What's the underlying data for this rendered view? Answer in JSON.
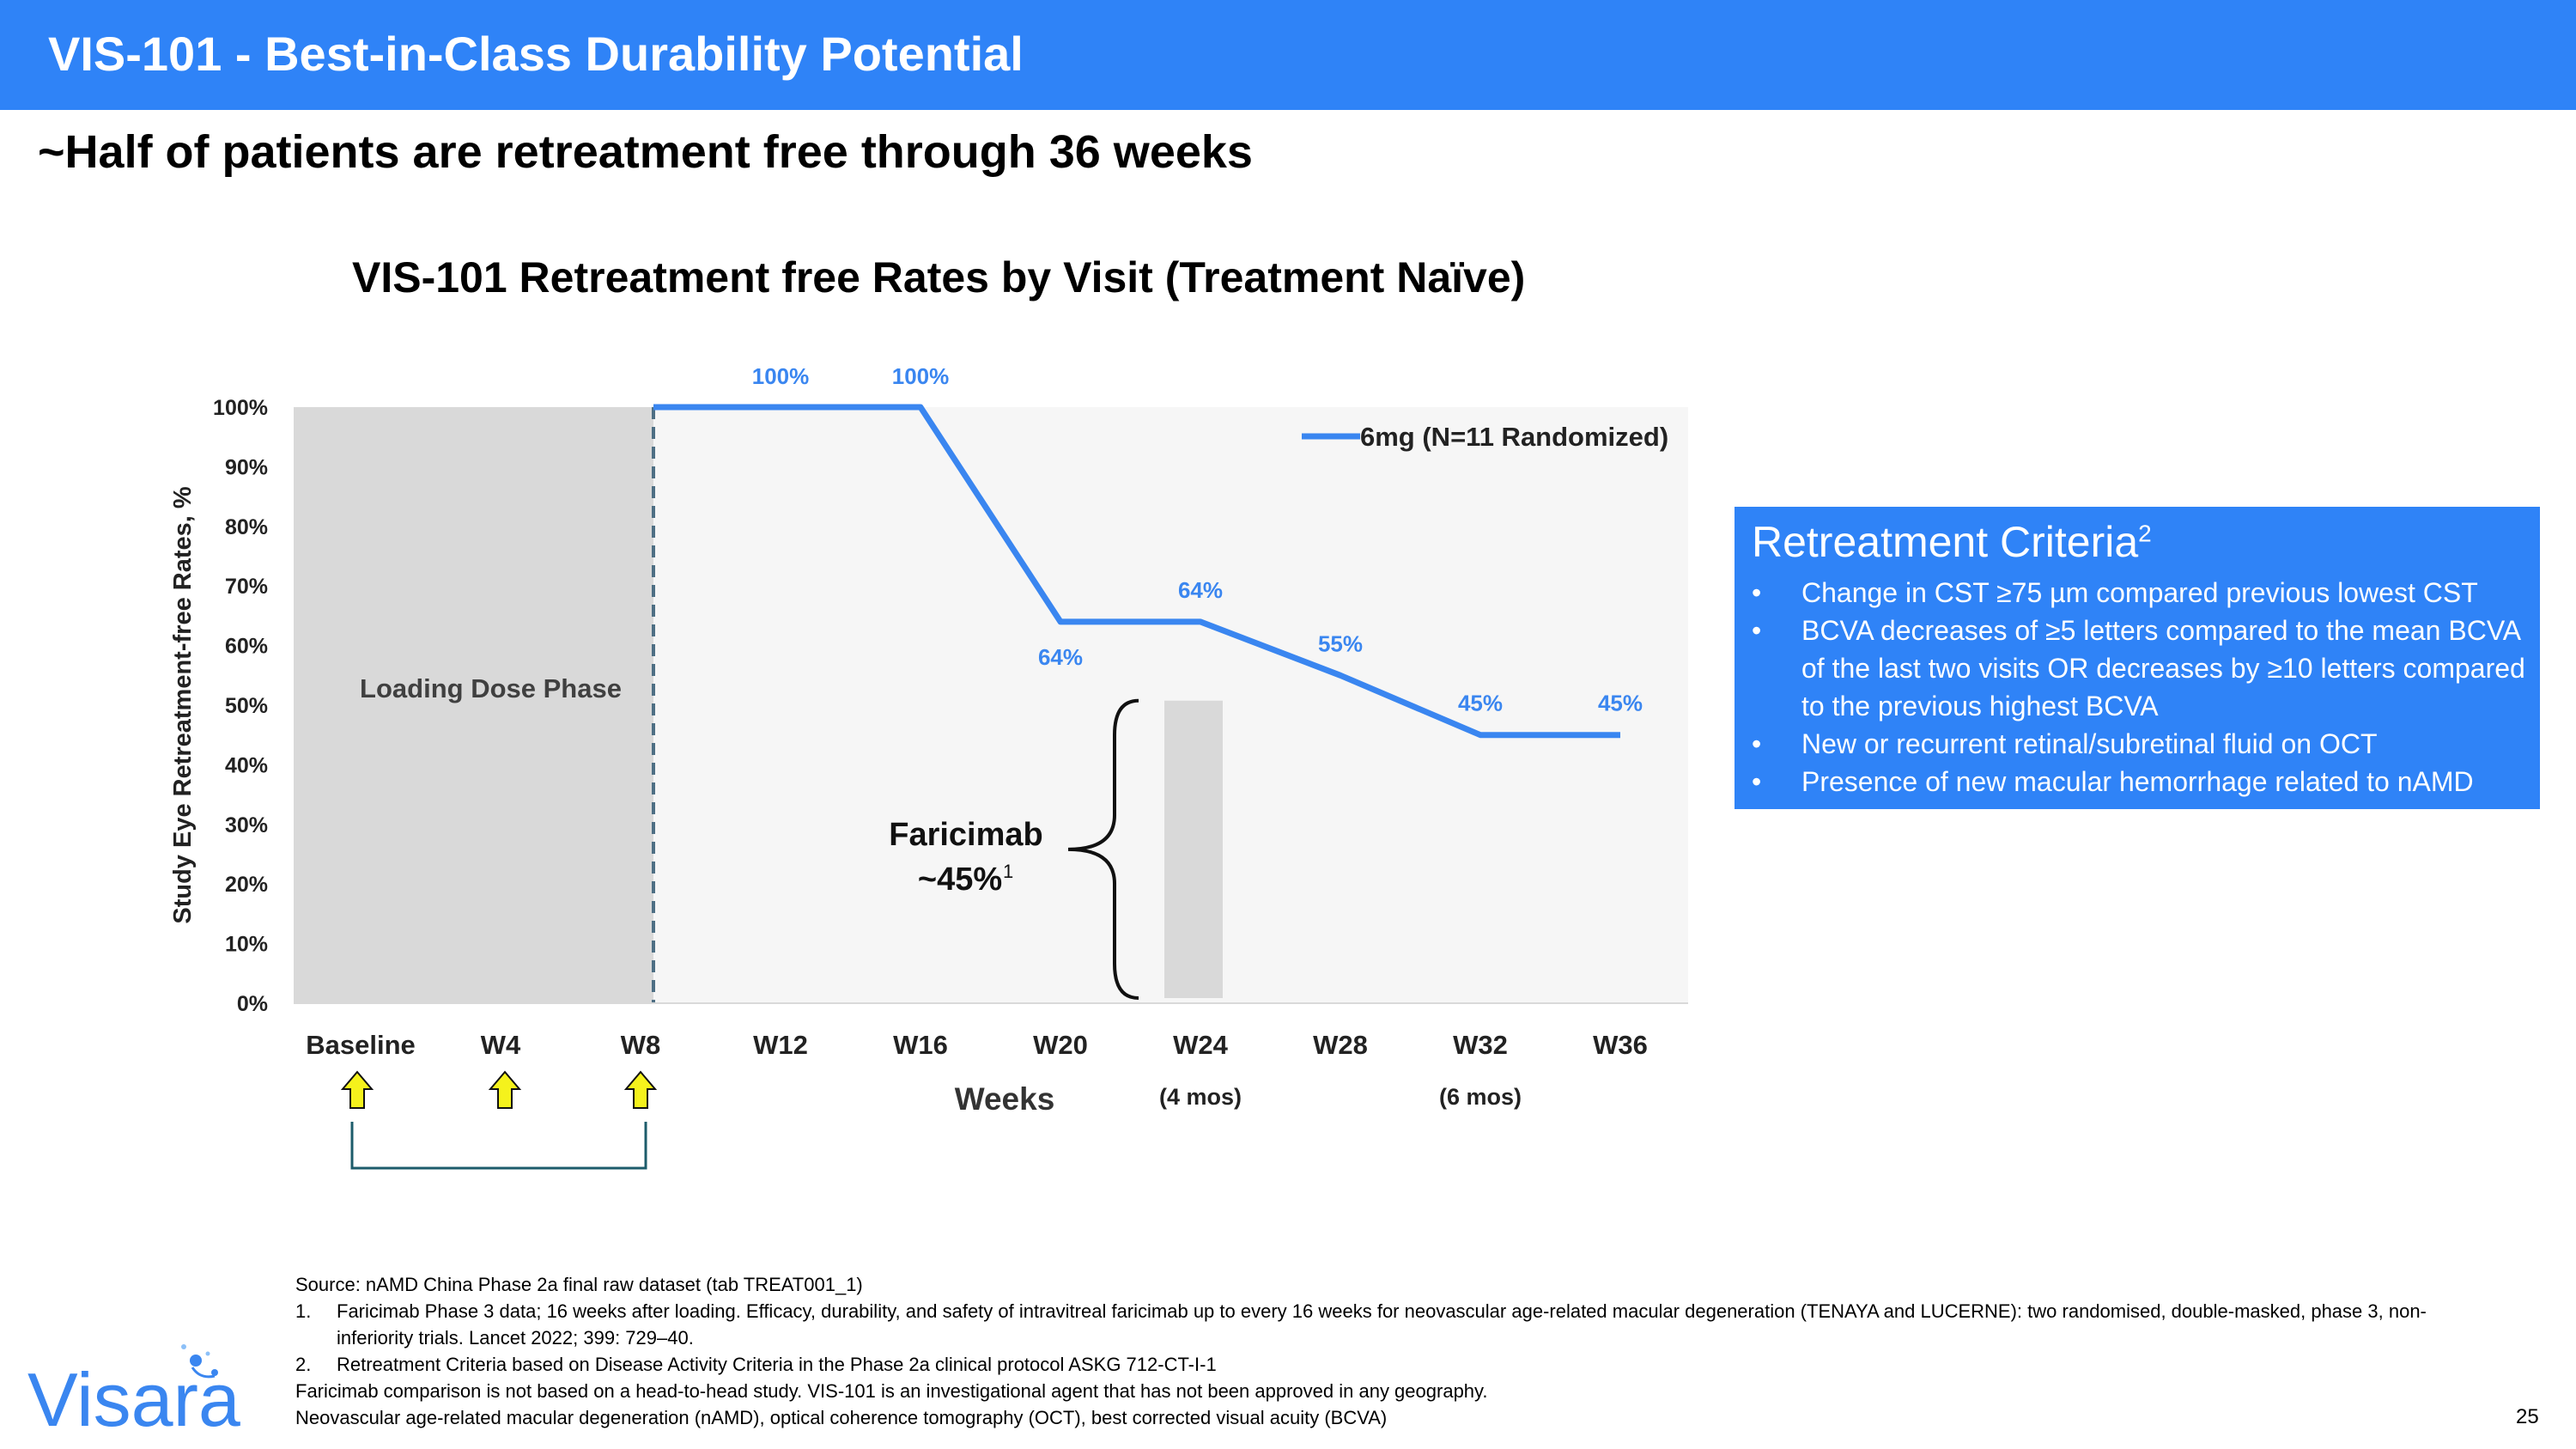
{
  "header": {
    "title": "VIS-101 - Best-in-Class Durability Potential"
  },
  "subtitle": "~Half of patients are retreatment free through 36 weeks",
  "chart_data": {
    "type": "line",
    "title": "VIS-101 Retreatment free Rates by Visit (Treatment Naïve)",
    "xlabel": "Weeks",
    "ylabel": "Study Eye Retreatment-free Rates, %",
    "categories": [
      "Baseline",
      "W4",
      "W8",
      "W12",
      "W16",
      "W20",
      "W24",
      "W28",
      "W32",
      "W36"
    ],
    "category_sublabels": [
      "",
      "",
      "",
      "",
      "",
      "",
      "(4 mos)",
      "",
      "(6 mos)",
      ""
    ],
    "ylim": [
      0,
      100
    ],
    "y_ticks": [
      "0%",
      "10%",
      "20%",
      "30%",
      "40%",
      "50%",
      "60%",
      "70%",
      "80%",
      "90%",
      "100%"
    ],
    "series": [
      {
        "name": "6mg (N=11 Randomized)",
        "color": "#3a86f0",
        "x": [
          "W8",
          "W12",
          "W16",
          "W20",
          "W24",
          "W28",
          "W32",
          "W36"
        ],
        "values": [
          100,
          100,
          100,
          64,
          64,
          55,
          45,
          45
        ]
      }
    ],
    "data_labels": [
      {
        "category": "W12",
        "value": 100,
        "text": "100%"
      },
      {
        "category": "W16",
        "value": 100,
        "text": "100%"
      },
      {
        "category": "W20",
        "value": 64,
        "text": "64%"
      },
      {
        "category": "W24",
        "value": 64,
        "text": "64%"
      },
      {
        "category": "W28",
        "value": 55,
        "text": "55%"
      },
      {
        "category": "W32",
        "value": 45,
        "text": "45%"
      },
      {
        "category": "W36",
        "value": 45,
        "text": "45%"
      }
    ],
    "shaded_region": {
      "from": "Baseline",
      "to": "W8",
      "label": "Loading Dose Phase",
      "color": "#d9d9d9"
    },
    "dosing_arrows": [
      "Baseline",
      "W4",
      "W8"
    ],
    "comparator": {
      "label": "Faricimab",
      "value_text": "~45%",
      "superscript": "1",
      "value": 45,
      "at_category": "W24",
      "color": "#d9d9d9"
    },
    "legend_position": "top-right",
    "grid": false
  },
  "criteria": {
    "title": "Retreatment Criteria",
    "superscript": "2",
    "bullet": "•",
    "items": [
      "Change in CST ≥75 µm compared previous lowest CST",
      "BCVA decreases of  ≥5 letters compared to the mean BCVA of the last two visits OR decreases by ≥10 letters compared to the previous highest BCVA",
      "New or recurrent retinal/subretinal fluid on OCT",
      "Presence of new macular hemorrhage related to nAMD"
    ]
  },
  "footnotes": {
    "source": "Source:  nAMD China Phase 2a final raw dataset (tab TREAT001_1)",
    "notes": [
      {
        "num": "1.",
        "text": "Faricimab Phase 3 data; 16 weeks after loading. Efficacy, durability, and safety of intravitreal faricimab up to every 16 weeks for neovascular age-related macular degeneration (TENAYA and LUCERNE): two randomised, double-masked, phase 3, non-inferiority trials. Lancet 2022; 399: 729–40."
      },
      {
        "num": "2.",
        "text": "Retreatment Criteria based on Disease Activity Criteria in the Phase 2a clinical protocol ASKG 712-CT-I-1"
      }
    ],
    "disclaimer": "Faricimab comparison is not based on a head-to-head study. VIS-101 is an investigational agent that has not been approved in any geography.",
    "abbreviations": "Neovascular age-related macular degeneration (nAMD), optical coherence tomography (OCT), best corrected visual acuity (BCVA)"
  },
  "logo": {
    "text": "Visara"
  },
  "page_number": "25",
  "colors": {
    "header": "#2f83f7",
    "line": "#3a86f0",
    "shade": "#d9d9d9",
    "arrow_fill": "#f5f21c",
    "bracket": "#1d5c6b"
  }
}
